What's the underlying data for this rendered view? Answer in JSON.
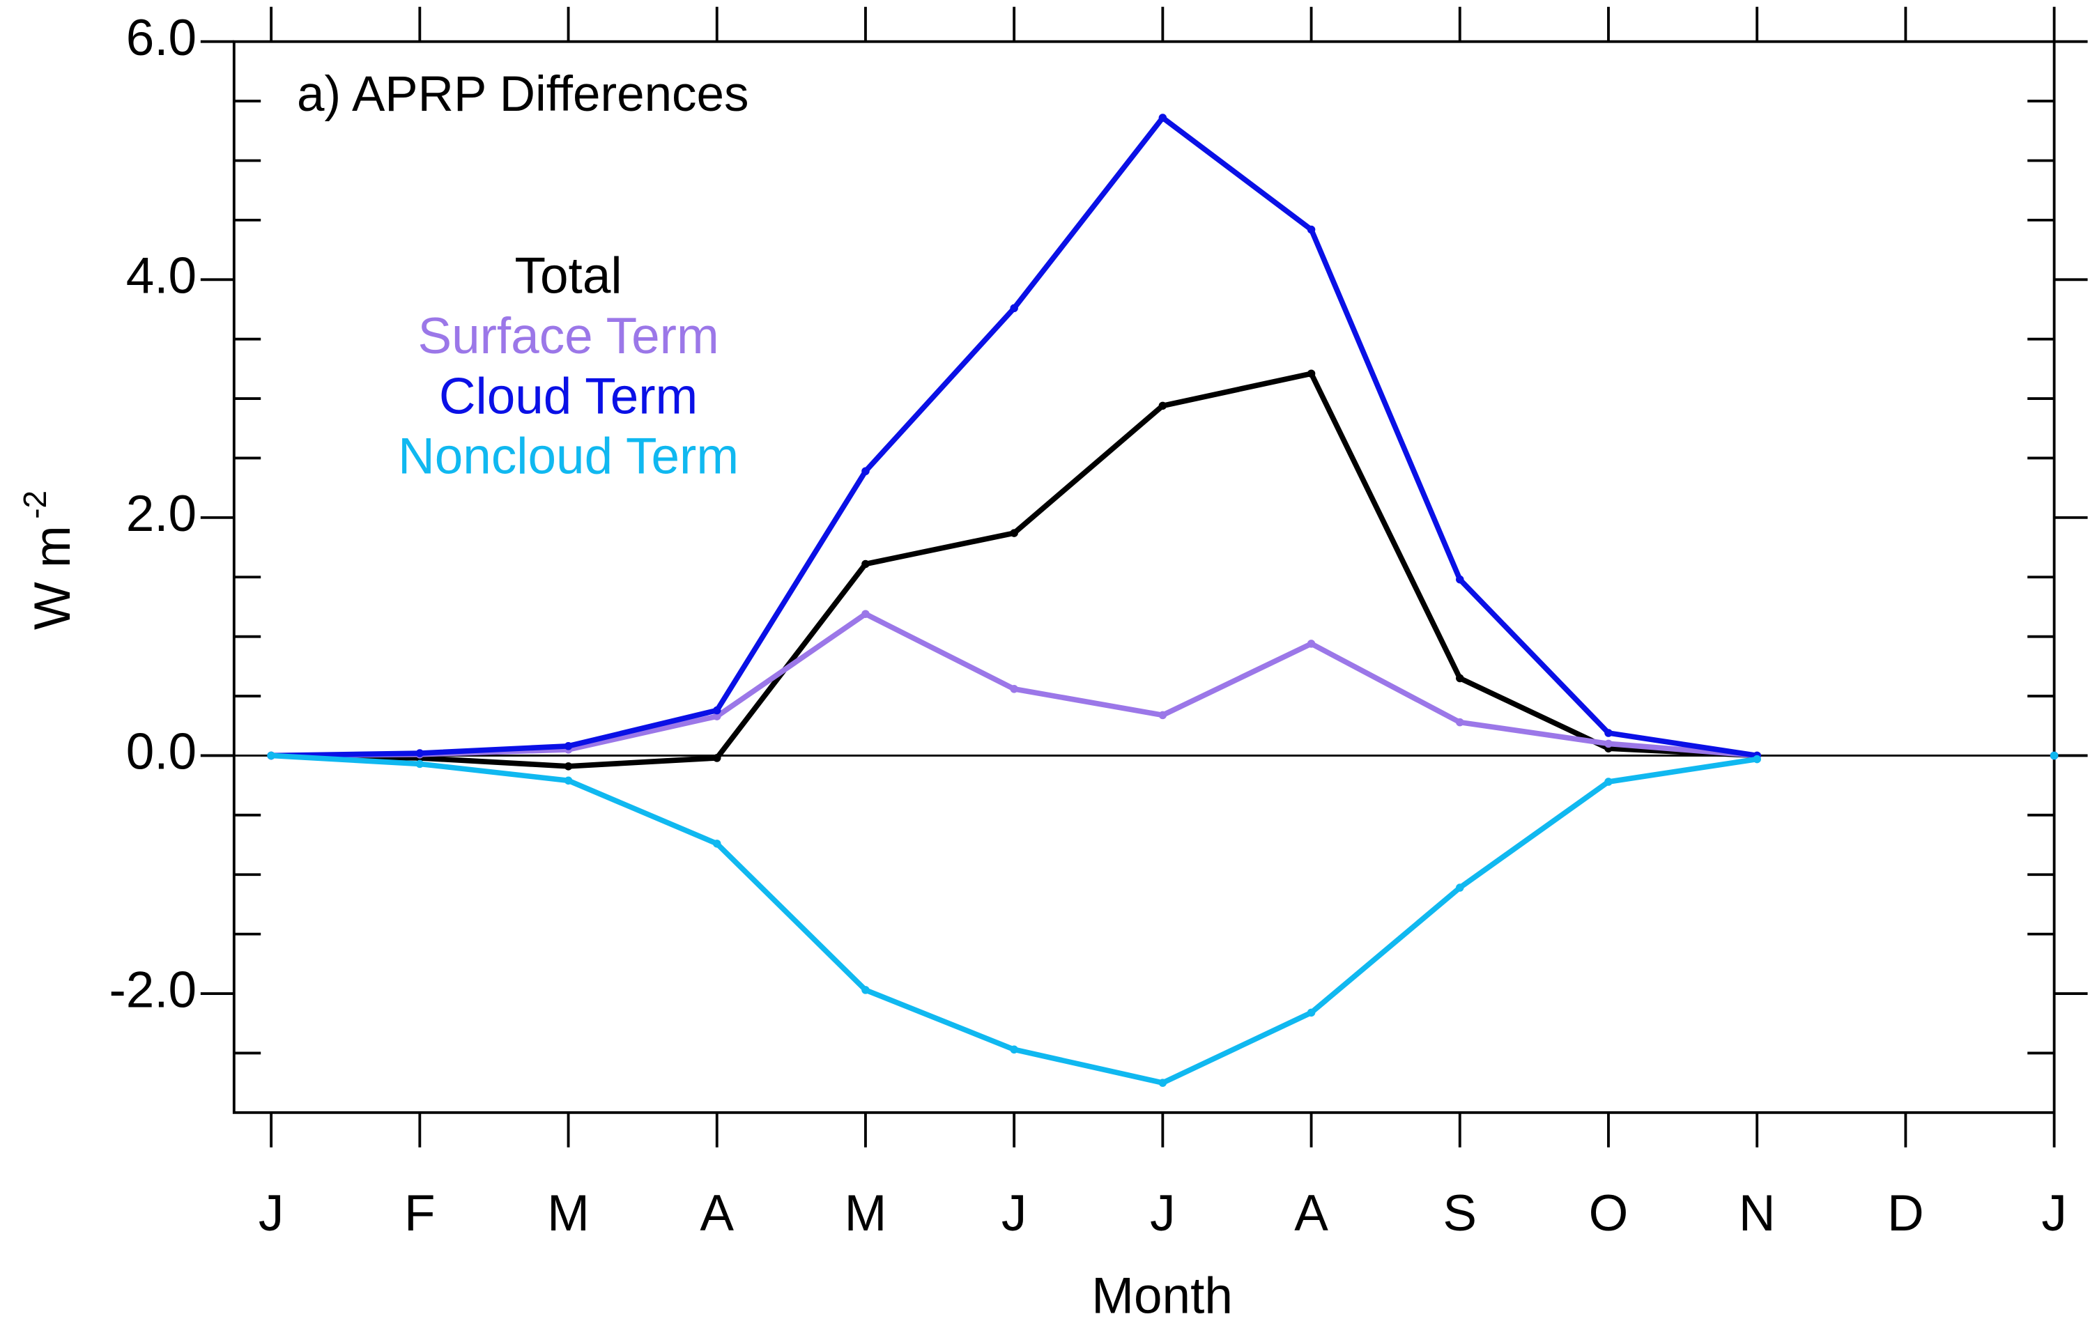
{
  "chart_data": {
    "type": "line",
    "title": "a) APRP Differences",
    "x_label": "Month",
    "y_label": {
      "text": "W m",
      "superscript": "-2"
    },
    "x": [
      0,
      1,
      2,
      3,
      4,
      5,
      6,
      7,
      8,
      9,
      10,
      11,
      12
    ],
    "xlim": [
      -0.25,
      12
    ],
    "xticks": [
      {
        "value": 0,
        "label": "J"
      },
      {
        "value": 1,
        "label": "F"
      },
      {
        "value": 2,
        "label": "M"
      },
      {
        "value": 3,
        "label": "A"
      },
      {
        "value": 4,
        "label": "M"
      },
      {
        "value": 5,
        "label": "J"
      },
      {
        "value": 6,
        "label": "J"
      },
      {
        "value": 7,
        "label": "A"
      },
      {
        "value": 8,
        "label": "S"
      },
      {
        "value": 9,
        "label": "O"
      },
      {
        "value": 10,
        "label": "N"
      },
      {
        "value": 11,
        "label": "D"
      },
      {
        "value": 12,
        "label": "J"
      }
    ],
    "ylim": [
      -3,
      6
    ],
    "yticks": [
      {
        "value": -2,
        "label": "-2.0"
      },
      {
        "value": 0,
        "label": "0.0"
      },
      {
        "value": 2,
        "label": "2.0"
      },
      {
        "value": 4,
        "label": "4.0"
      },
      {
        "value": 6,
        "label": "6.0"
      }
    ],
    "yminorticks": [
      -2.5,
      -1.5,
      -1,
      -0.5,
      0.5,
      1,
      1.5,
      2.5,
      3,
      3.5,
      4.5,
      5,
      5.5
    ],
    "zero_line": true,
    "series": [
      {
        "name": "Total",
        "color": "#000000",
        "values": [
          0,
          -0.02,
          -0.09,
          -0.02,
          1.61,
          1.87,
          2.94,
          3.21,
          0.65,
          0.06,
          0.0,
          null,
          0
        ]
      },
      {
        "name": "Surface Term",
        "color": "#9b77e8",
        "values": [
          0,
          0.01,
          0.05,
          0.33,
          1.19,
          0.56,
          0.34,
          0.94,
          0.28,
          0.1,
          0.0,
          null,
          0
        ]
      },
      {
        "name": "Cloud Term",
        "color": "#0a10e6",
        "values": [
          0,
          0.02,
          0.08,
          0.38,
          2.39,
          3.76,
          5.36,
          4.42,
          1.48,
          0.19,
          0.0,
          null,
          0
        ]
      },
      {
        "name": "Noncloud Term",
        "color": "#10b8f0",
        "values": [
          0,
          -0.07,
          -0.21,
          -0.74,
          -1.97,
          -2.47,
          -2.75,
          -2.16,
          -1.11,
          -0.22,
          -0.03,
          null,
          0
        ]
      }
    ]
  }
}
